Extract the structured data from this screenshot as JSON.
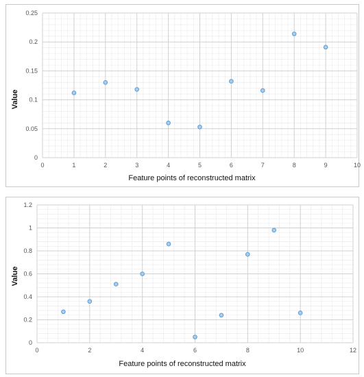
{
  "colors": {
    "marker_fill": "#a9cdea",
    "marker_stroke": "#5b9bd5",
    "major_grid": "#d0d0d0",
    "minor_grid": "#ececec"
  },
  "chart_data": [
    {
      "type": "scatter",
      "xlabel": "Feature points of reconstructed matrix",
      "ylabel": "Value",
      "xlim": [
        0,
        10
      ],
      "ylim": [
        0,
        0.25
      ],
      "xticks": [
        0,
        1,
        2,
        3,
        4,
        5,
        6,
        7,
        8,
        9,
        10
      ],
      "yticks": [
        0,
        0.05,
        0.1,
        0.15,
        0.2,
        0.25
      ],
      "xtick_labels": [
        "0",
        "1",
        "2",
        "3",
        "4",
        "5",
        "6",
        "7",
        "8",
        "9",
        "10"
      ],
      "ytick_labels": [
        "0",
        "0.05",
        "0.1",
        "0.15",
        "0.2",
        "0.25"
      ],
      "grid": true,
      "x": [
        1,
        2,
        3,
        4,
        5,
        6,
        7,
        8,
        9
      ],
      "y": [
        0.112,
        0.13,
        0.118,
        0.06,
        0.053,
        0.132,
        0.116,
        0.214,
        0.191
      ]
    },
    {
      "type": "scatter",
      "xlabel": "Feature points of reconstructed matrix",
      "ylabel": "Value",
      "xlim": [
        0,
        12
      ],
      "ylim": [
        0,
        1.2
      ],
      "xticks": [
        0,
        2,
        4,
        6,
        8,
        10,
        12
      ],
      "yticks": [
        0,
        0.2,
        0.4,
        0.6,
        0.8,
        1,
        1.2
      ],
      "xtick_labels": [
        "0",
        "2",
        "4",
        "6",
        "8",
        "10",
        "12"
      ],
      "ytick_labels": [
        "0",
        "0.2",
        "0.4",
        "0.6",
        "0.8",
        "1",
        "1.2"
      ],
      "grid": true,
      "x": [
        1,
        2,
        3,
        4,
        5,
        6,
        7,
        8,
        9,
        10
      ],
      "y": [
        0.27,
        0.36,
        0.51,
        0.6,
        0.86,
        0.05,
        0.24,
        0.77,
        0.98,
        0.26
      ]
    }
  ]
}
